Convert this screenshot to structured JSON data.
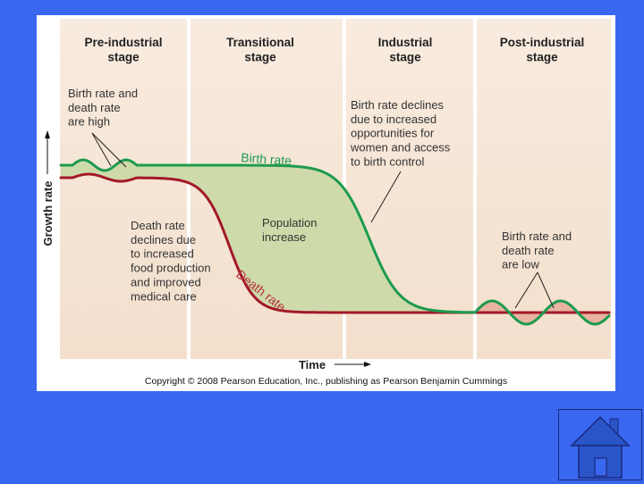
{
  "stages": [
    "Pre-industrial\nstage",
    "Transitional\nstage",
    "Industrial\nstage",
    "Post-industrial\nstage"
  ],
  "curve_labels": {
    "birth": "Birth rate",
    "death": "Death rate"
  },
  "annotations": {
    "pre": "Birth rate and\ndeath rate\nare high",
    "industrial": "Birth rate declines\ndue to increased\nopportunities for\nwomen and access\nto birth control",
    "death_decline": "Death rate\ndeclines due\nto increased\nfood production\nand improved\nmedical care",
    "population": "Population\nincrease",
    "post": "Birth rate and\ndeath rate\nare low"
  },
  "axes": {
    "x": "Time",
    "y": "Growth rate"
  },
  "copyright": "Copyright © 2008 Pearson Education, Inc., publishing as Pearson Benjamin Cummings",
  "colors": {
    "birth": "#1d9a4e",
    "death": "#a3192a",
    "fill": "#cfdaaa",
    "post_fill": "#e8b3a0",
    "panel": "#f6e6d7",
    "home": "#2955c9"
  },
  "nav": {
    "icon": "home-icon"
  }
}
